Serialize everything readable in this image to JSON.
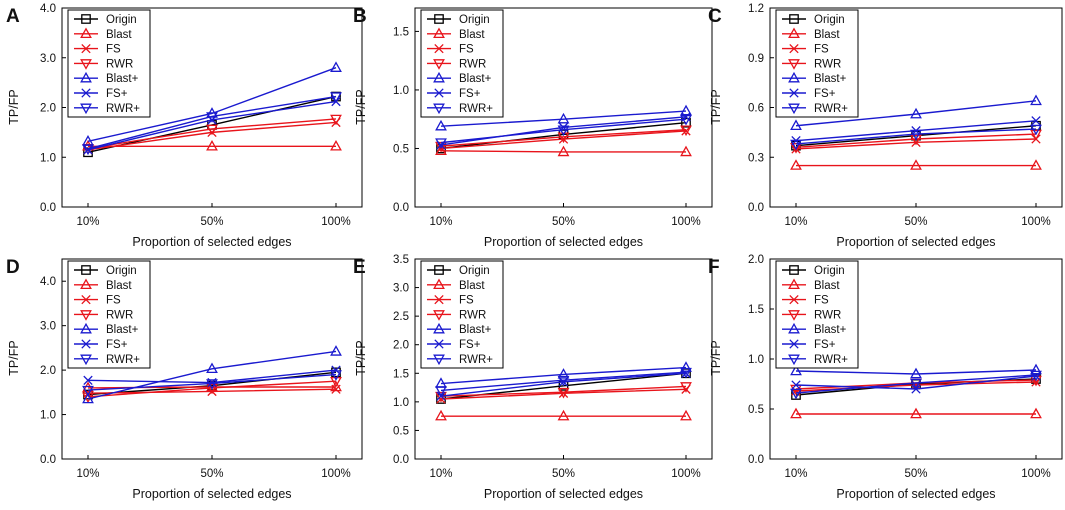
{
  "colors": {
    "black": "#000000",
    "red": "#e8141b",
    "blue": "#1a1acf"
  },
  "legend": [
    {
      "name": "Origin",
      "color": "black",
      "marker": "square"
    },
    {
      "name": "Blast",
      "color": "red",
      "marker": "triangle-up"
    },
    {
      "name": "FS",
      "color": "red",
      "marker": "x"
    },
    {
      "name": "RWR",
      "color": "red",
      "marker": "triangle-down"
    },
    {
      "name": "Blast+",
      "color": "blue",
      "marker": "triangle-up"
    },
    {
      "name": "FS+",
      "color": "blue",
      "marker": "x"
    },
    {
      "name": "RWR+",
      "color": "blue",
      "marker": "triangle-down"
    }
  ],
  "chart_data": [
    {
      "panel": "A",
      "type": "line",
      "xlabel": "Proportion of selected edges",
      "ylabel": "TP/FP",
      "categories": [
        "10%",
        "50%",
        "100%"
      ],
      "ylim": [
        0,
        4.0
      ],
      "yticks": [
        "0.0",
        "1.0",
        "2.0",
        "3.0",
        "4.0"
      ],
      "series": [
        {
          "name": "Origin",
          "values": [
            1.1,
            1.65,
            2.22
          ]
        },
        {
          "name": "Blast",
          "values": [
            1.22,
            1.22,
            1.22
          ]
        },
        {
          "name": "FS",
          "values": [
            1.15,
            1.5,
            1.7
          ]
        },
        {
          "name": "RWR",
          "values": [
            1.18,
            1.57,
            1.77
          ]
        },
        {
          "name": "Blast+",
          "values": [
            1.32,
            1.88,
            2.8
          ]
        },
        {
          "name": "FS+",
          "values": [
            1.15,
            1.75,
            2.12
          ]
        },
        {
          "name": "RWR+",
          "values": [
            1.17,
            1.82,
            2.22
          ]
        }
      ]
    },
    {
      "panel": "B",
      "type": "line",
      "xlabel": "Proportion of selected edges",
      "ylabel": "TP/FP",
      "categories": [
        "10%",
        "50%",
        "100%"
      ],
      "ylim": [
        0,
        1.7
      ],
      "yticks": [
        "0.0",
        "0.5",
        "1.0",
        "1.5"
      ],
      "series": [
        {
          "name": "Origin",
          "values": [
            0.5,
            0.62,
            0.72
          ]
        },
        {
          "name": "Blast",
          "values": [
            0.48,
            0.47,
            0.47
          ]
        },
        {
          "name": "FS",
          "values": [
            0.5,
            0.58,
            0.65
          ]
        },
        {
          "name": "RWR",
          "values": [
            0.52,
            0.6,
            0.66
          ]
        },
        {
          "name": "Blast+",
          "values": [
            0.69,
            0.75,
            0.82
          ]
        },
        {
          "name": "FS+",
          "values": [
            0.53,
            0.68,
            0.77
          ]
        },
        {
          "name": "RWR+",
          "values": [
            0.55,
            0.66,
            0.75
          ]
        }
      ]
    },
    {
      "panel": "C",
      "type": "line",
      "xlabel": "Proportion of selected edges",
      "ylabel": "TP/FP",
      "categories": [
        "10%",
        "50%",
        "100%"
      ],
      "ylim": [
        0,
        1.2
      ],
      "yticks": [
        "0.0",
        "0.3",
        "0.6",
        "0.9",
        "1.2"
      ],
      "series": [
        {
          "name": "Origin",
          "values": [
            0.37,
            0.43,
            0.49
          ]
        },
        {
          "name": "Blast",
          "values": [
            0.25,
            0.25,
            0.25
          ]
        },
        {
          "name": "FS",
          "values": [
            0.35,
            0.39,
            0.41
          ]
        },
        {
          "name": "RWR",
          "values": [
            0.36,
            0.41,
            0.44
          ]
        },
        {
          "name": "Blast+",
          "values": [
            0.49,
            0.56,
            0.64
          ]
        },
        {
          "name": "FS+",
          "values": [
            0.4,
            0.46,
            0.52
          ]
        },
        {
          "name": "RWR+",
          "values": [
            0.38,
            0.44,
            0.47
          ]
        }
      ]
    },
    {
      "panel": "D",
      "type": "line",
      "xlabel": "Proportion of selected edges",
      "ylabel": "TP/FP",
      "categories": [
        "10%",
        "50%",
        "100%"
      ],
      "ylim": [
        0,
        4.5
      ],
      "yticks": [
        "0.0",
        "1.0",
        "2.0",
        "3.0",
        "4.0"
      ],
      "series": [
        {
          "name": "Origin",
          "values": [
            1.45,
            1.65,
            1.95
          ]
        },
        {
          "name": "Blast",
          "values": [
            1.6,
            1.62,
            1.62
          ]
        },
        {
          "name": "FS",
          "values": [
            1.48,
            1.52,
            1.57
          ]
        },
        {
          "name": "RWR",
          "values": [
            1.4,
            1.6,
            1.75
          ]
        },
        {
          "name": "Blast+",
          "values": [
            1.35,
            2.03,
            2.42
          ]
        },
        {
          "name": "FS+",
          "values": [
            1.77,
            1.72,
            2.0
          ]
        },
        {
          "name": "RWR+",
          "values": [
            1.55,
            1.7,
            1.9
          ]
        }
      ]
    },
    {
      "panel": "E",
      "type": "line",
      "xlabel": "Proportion of selected edges",
      "ylabel": "TP/FP",
      "categories": [
        "10%",
        "50%",
        "100%"
      ],
      "ylim": [
        0,
        3.5
      ],
      "yticks": [
        "0.0",
        "0.5",
        "1.0",
        "1.5",
        "2.0",
        "2.5",
        "3.0",
        "3.5"
      ],
      "series": [
        {
          "name": "Origin",
          "values": [
            1.05,
            1.28,
            1.5
          ]
        },
        {
          "name": "Blast",
          "values": [
            0.75,
            0.75,
            0.75
          ]
        },
        {
          "name": "FS",
          "values": [
            1.05,
            1.15,
            1.22
          ]
        },
        {
          "name": "RWR",
          "values": [
            1.1,
            1.17,
            1.27
          ]
        },
        {
          "name": "Blast+",
          "values": [
            1.32,
            1.48,
            1.6
          ]
        },
        {
          "name": "FS+",
          "values": [
            1.1,
            1.35,
            1.5
          ]
        },
        {
          "name": "RWR+",
          "values": [
            1.2,
            1.38,
            1.52
          ]
        }
      ]
    },
    {
      "panel": "F",
      "type": "line",
      "xlabel": "Proportion of selected edges",
      "ylabel": "TP/FP",
      "categories": [
        "10%",
        "50%",
        "100%"
      ],
      "ylim": [
        0,
        2.0
      ],
      "yticks": [
        "0.0",
        "0.5",
        "1.0",
        "1.5",
        "2.0"
      ],
      "series": [
        {
          "name": "Origin",
          "values": [
            0.64,
            0.75,
            0.8
          ]
        },
        {
          "name": "Blast",
          "values": [
            0.45,
            0.45,
            0.45
          ]
        },
        {
          "name": "FS",
          "values": [
            0.68,
            0.74,
            0.77
          ]
        },
        {
          "name": "RWR",
          "values": [
            0.7,
            0.76,
            0.79
          ]
        },
        {
          "name": "Blast+",
          "values": [
            0.88,
            0.85,
            0.89
          ]
        },
        {
          "name": "FS+",
          "values": [
            0.74,
            0.7,
            0.83
          ]
        },
        {
          "name": "RWR+",
          "values": [
            0.66,
            0.76,
            0.84
          ]
        }
      ]
    }
  ]
}
